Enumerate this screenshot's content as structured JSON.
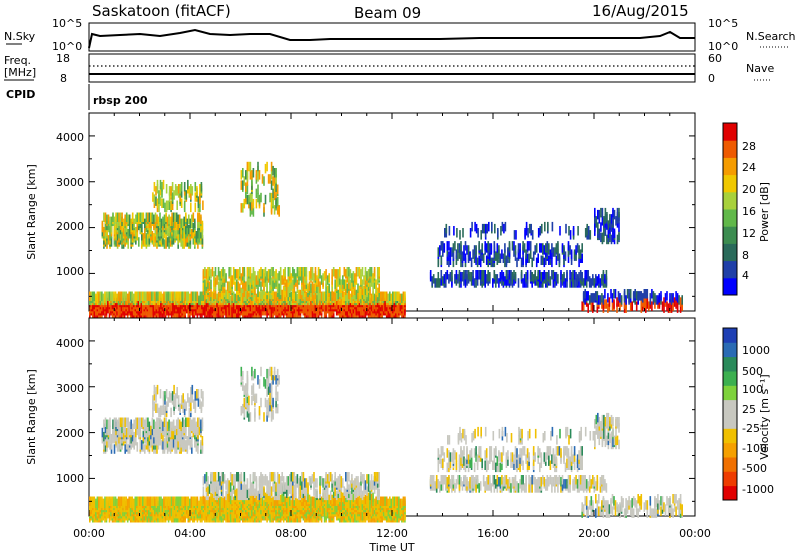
{
  "header": {
    "station": "Saskatoon (fitACF)",
    "beam": "Beam 09",
    "date": "16/Aug/2015"
  },
  "top_panel": {
    "left_label": "N.Sky",
    "right_label": "N.Search",
    "left_ticks": [
      "10^5",
      "10^0"
    ],
    "right_ticks": [
      "10^5",
      "10^0"
    ]
  },
  "freq_panel": {
    "left_label_1": "Freq.",
    "left_label_2": "[MHz]",
    "right_label": "Nave",
    "left_ticks": [
      "18",
      "8"
    ],
    "right_ticks": [
      "60",
      "0"
    ]
  },
  "cpid": {
    "label": "CPID",
    "value": "rbsp 200"
  },
  "chart_data": [
    {
      "type": "heatmap",
      "quantity": "Power",
      "ylabel": "Slant Range [km]",
      "xlabel": "Time UT",
      "y_ticks": [
        "1000",
        "2000",
        "3000",
        "4000"
      ],
      "x_ticks": [
        "00:00",
        "04:00",
        "08:00",
        "12:00",
        "16:00",
        "20:00",
        "00:00"
      ],
      "ylim": [
        180,
        4500
      ],
      "xlim_hours": [
        0,
        24
      ],
      "colorbar": {
        "label": "Power [dB]",
        "ticks": [
          "4",
          "8",
          "12",
          "16",
          "20",
          "24",
          "28"
        ],
        "colors": [
          "#0000ff",
          "#1f3fa8",
          "#2a6a5a",
          "#3c8c50",
          "#61b84a",
          "#a8d13c",
          "#f0c800",
          "#f59c00",
          "#ee5a00",
          "#e00000"
        ]
      }
    },
    {
      "type": "heatmap",
      "quantity": "Velocity",
      "ylabel": "Slant Range [km]",
      "xlabel": "Time UT",
      "y_ticks": [
        "1000",
        "2000",
        "3000",
        "4000"
      ],
      "x_ticks": [
        "00:00",
        "04:00",
        "08:00",
        "12:00",
        "16:00",
        "20:00",
        "00:00"
      ],
      "ylim": [
        180,
        4500
      ],
      "xlim_hours": [
        0,
        24
      ],
      "colorbar": {
        "label": "Velocity [m s⁻¹]",
        "ticks": [
          "1000",
          "500",
          "100",
          "25",
          "-25",
          "-100",
          "-500",
          "-1000"
        ],
        "colors": [
          "#1e3fb4",
          "#2a6bb4",
          "#2a8a5a",
          "#3cb050",
          "#7ed23c",
          "#c8c8c0",
          "#c8c8c0",
          "#f0c000",
          "#f5a000",
          "#f07000",
          "#ee3c00",
          "#e00000"
        ]
      }
    }
  ]
}
